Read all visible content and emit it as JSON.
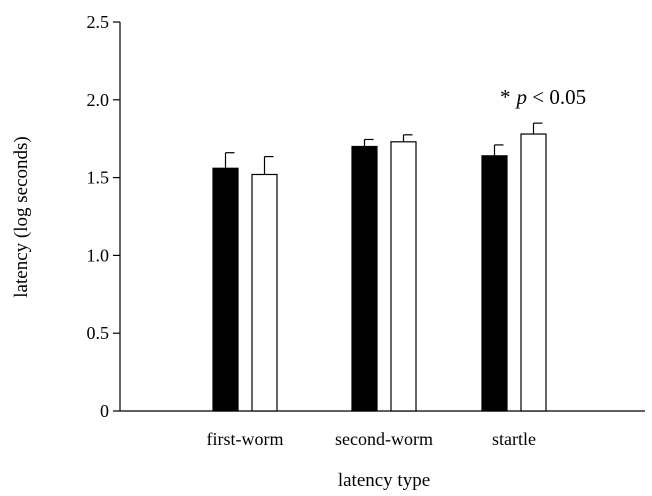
{
  "chart_data": {
    "type": "bar",
    "xlabel": "latency type",
    "ylabel": "latency (log seconds)",
    "ylim": [
      0,
      2.5
    ],
    "yticks": [
      0,
      0.5,
      1.0,
      1.5,
      2.0,
      2.5
    ],
    "ytick_labels": [
      "0",
      "0.5",
      "1.0",
      "1.5",
      "2.0",
      "2.5"
    ],
    "categories": [
      "first-worm",
      "second-worm",
      "startle"
    ],
    "grid": false,
    "legend": "none",
    "series": [
      {
        "color": "#000000",
        "values": [
          1.56,
          1.7,
          1.64
        ],
        "errors": [
          0.1,
          0.045,
          0.07
        ]
      },
      {
        "color": "#ffffff",
        "values": [
          1.52,
          1.73,
          1.78
        ],
        "errors": [
          0.115,
          0.045,
          0.07
        ]
      }
    ],
    "annotation": {
      "star": "*",
      "p": "p",
      "rest": " < 0.05",
      "category_index": 2
    }
  }
}
